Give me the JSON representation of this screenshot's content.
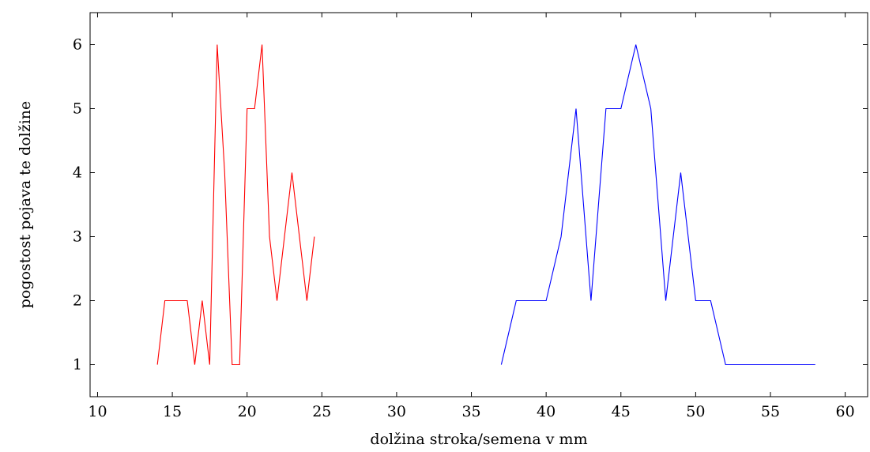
{
  "chart_data": {
    "type": "line",
    "title": "",
    "xlabel": "dolžina stroka/semena v mm",
    "ylabel": "pogostost pojava te dolžine",
    "xlim": [
      9.5,
      61.5
    ],
    "ylim": [
      0.5,
      6.5
    ],
    "xticks": [
      10,
      15,
      20,
      25,
      30,
      35,
      40,
      45,
      50,
      55,
      60
    ],
    "yticks": [
      1,
      2,
      3,
      4,
      5,
      6
    ],
    "grid": false,
    "series": [
      {
        "color": "#ff0000",
        "x": [
          14,
          14.5,
          15,
          15.5,
          16,
          16.5,
          17,
          17.5,
          18,
          18.5,
          19,
          19.5,
          20,
          20.5,
          21,
          21.5,
          22,
          22.5,
          23,
          23.5,
          24,
          24.5
        ],
        "y": [
          1,
          2,
          2,
          2,
          2,
          1,
          2,
          1,
          6,
          4,
          1,
          1,
          5,
          5,
          6,
          3,
          2,
          3,
          4,
          3,
          2,
          3
        ]
      },
      {
        "color": "#0000ff",
        "x": [
          37,
          38,
          39,
          40,
          41,
          42,
          43,
          44,
          45,
          46,
          47,
          48,
          49,
          50,
          51,
          52,
          53,
          54,
          55,
          56,
          57,
          58
        ],
        "y": [
          1,
          2,
          2,
          2,
          3,
          5,
          2,
          5,
          5,
          6,
          5,
          2,
          4,
          2,
          2,
          1,
          1,
          1,
          1,
          1,
          1,
          1
        ]
      }
    ]
  }
}
